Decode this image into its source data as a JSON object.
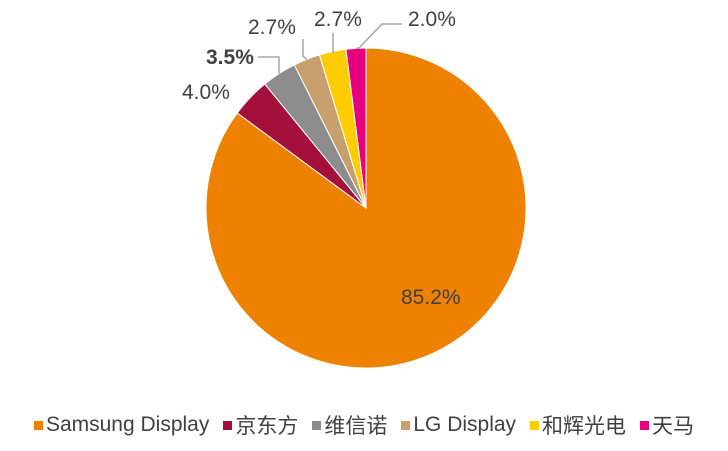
{
  "chart_data": {
    "type": "pie",
    "title": "",
    "start_angle_deg": 0,
    "direction": "counterclockwise-from-first-ending-at-top",
    "slices": [
      {
        "label": "Samsung Display",
        "value": 85.2,
        "display": "85.2%",
        "color": "#EE8200"
      },
      {
        "label": "京东方",
        "value": 4.0,
        "display": "4.0%",
        "color": "#A50F3C"
      },
      {
        "label": "维信诺",
        "value": 3.5,
        "display": "3.5%",
        "color": "#8C8C8C"
      },
      {
        "label": "LG Display",
        "value": 2.7,
        "display": "2.7%",
        "color": "#C8A06E"
      },
      {
        "label": "和辉光电",
        "value": 2.7,
        "display": "2.7%",
        "color": "#FFCC00"
      },
      {
        "label": "天马",
        "value": 2.0,
        "display": "2.0%",
        "color": "#E6007E"
      }
    ],
    "legend_position": "bottom"
  },
  "labels": {
    "samsung": "85.2%",
    "boe": "4.0%",
    "visionox": "3.5%",
    "lg": "2.7%",
    "everdisplay": "2.7%",
    "tianma": "2.0%"
  },
  "legend": [
    {
      "label": "Samsung Display",
      "color": "#EE8200"
    },
    {
      "label": "京东方",
      "color": "#A50F3C"
    },
    {
      "label": "维信诺",
      "color": "#8C8C8C"
    },
    {
      "label": "LG Display",
      "color": "#C8A06E"
    },
    {
      "label": "和辉光电",
      "color": "#FFCC00"
    },
    {
      "label": "天马",
      "color": "#E6007E"
    }
  ]
}
